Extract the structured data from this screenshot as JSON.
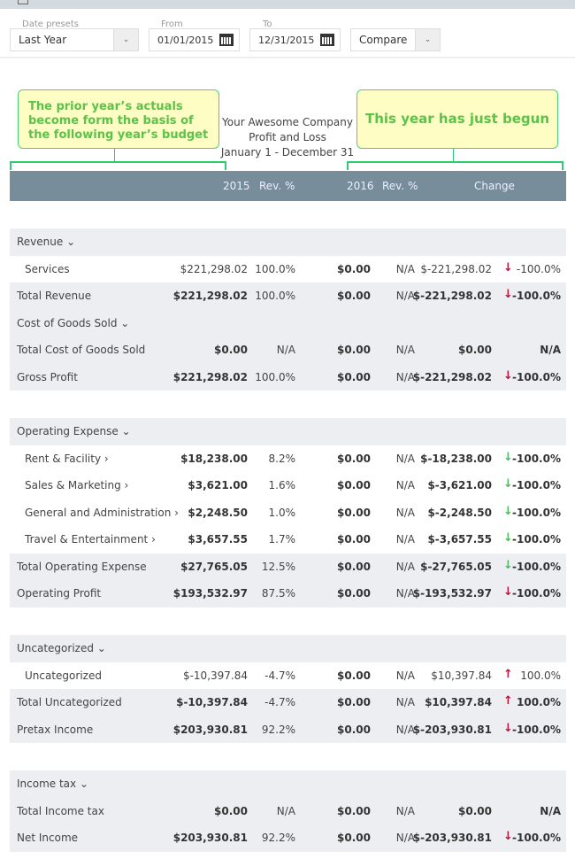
{
  "filters": {
    "date_presets_label": "Date presets",
    "date_presets_value": "Last Year",
    "from_label": "From",
    "from_value": "01/01/2015",
    "to_label": "To",
    "to_value": "12/31/2015",
    "compare_value": "Compare"
  },
  "callouts": {
    "left": "The prior year’s actuals become form the basis of the following year’s budget",
    "right": "This year has just begun"
  },
  "report": {
    "company": "Your Awesome Company",
    "name": "Profit and Loss",
    "period": "January 1 - December 31"
  },
  "columns": {
    "y1": "2015",
    "r1": "Rev. %",
    "y2": "2016",
    "r2": "Rev. %",
    "change": "Change"
  },
  "colors": {
    "header": "#778d99",
    "row_gray": "#eceef1",
    "arrow_red": "#c0143c",
    "arrow_green": "#4cbb5c",
    "callout_text": "#5cc24a"
  },
  "rows": [
    {
      "label": "Revenue ⌄",
      "type": "section"
    },
    {
      "label": "Services",
      "type": "sub",
      "v1": "$221,298.02",
      "r1": "100.0%",
      "v2": "$0.00",
      "r2": "N/A",
      "ch": "$-221,298.02",
      "arrow": "down-red",
      "pct": "-100.0%"
    },
    {
      "label": "Total Revenue",
      "type": "total",
      "v1": "$221,298.02",
      "r1": "100.0%",
      "v2": "$0.00",
      "r2": "N/A",
      "ch": "$-221,298.02",
      "arrow": "down-red",
      "pct": "-100.0%"
    },
    {
      "label": "Cost of Goods Sold ⌄",
      "type": "section"
    },
    {
      "label": "Total Cost of Goods Sold",
      "type": "total",
      "v1": "$0.00",
      "r1": "N/A",
      "v2": "$0.00",
      "r2": "N/A",
      "ch": "$0.00",
      "arrow": "",
      "pct": "N/A"
    },
    {
      "label": "Gross Profit",
      "type": "total",
      "v1": "$221,298.02",
      "r1": "100.0%",
      "v2": "$0.00",
      "r2": "N/A",
      "ch": "$-221,298.02",
      "arrow": "down-red",
      "pct": "-100.0%"
    },
    {
      "label": "Operating Expense ⌄",
      "type": "section"
    },
    {
      "label": "Rent & Facility ›",
      "type": "subb",
      "v1": "$18,238.00",
      "r1": "8.2%",
      "v2": "$0.00",
      "r2": "N/A",
      "ch": "$-18,238.00",
      "arrow": "down-green",
      "pct": "-100.0%"
    },
    {
      "label": "Sales & Marketing ›",
      "type": "subb",
      "v1": "$3,621.00",
      "r1": "1.6%",
      "v2": "$0.00",
      "r2": "N/A",
      "ch": "$-3,621.00",
      "arrow": "down-green",
      "pct": "-100.0%"
    },
    {
      "label": "General and Administration ›",
      "type": "subb",
      "v1": "$2,248.50",
      "r1": "1.0%",
      "v2": "$0.00",
      "r2": "N/A",
      "ch": "$-2,248.50",
      "arrow": "down-green",
      "pct": "-100.0%"
    },
    {
      "label": "Travel & Entertainment ›",
      "type": "subb",
      "v1": "$3,657.55",
      "r1": "1.7%",
      "v2": "$0.00",
      "r2": "N/A",
      "ch": "$-3,657.55",
      "arrow": "down-green",
      "pct": "-100.0%"
    },
    {
      "label": "Total Operating Expense",
      "type": "total",
      "v1": "$27,765.05",
      "r1": "12.5%",
      "v2": "$0.00",
      "r2": "N/A",
      "ch": "$-27,765.05",
      "arrow": "down-green",
      "pct": "-100.0%"
    },
    {
      "label": "Operating Profit",
      "type": "total",
      "v1": "$193,532.97",
      "r1": "87.5%",
      "v2": "$0.00",
      "r2": "N/A",
      "ch": "$-193,532.97",
      "arrow": "down-red",
      "pct": "-100.0%"
    },
    {
      "label": "Uncategorized ⌄",
      "type": "section"
    },
    {
      "label": "Uncategorized",
      "type": "sub",
      "v1": "$-10,397.84",
      "r1": "-4.7%",
      "v2": "$0.00",
      "r2": "N/A",
      "ch": "$10,397.84",
      "arrow": "up-red",
      "pct": "100.0%"
    },
    {
      "label": "Total Uncategorized",
      "type": "total",
      "v1": "$-10,397.84",
      "r1": "-4.7%",
      "v2": "$0.00",
      "r2": "N/A",
      "ch": "$10,397.84",
      "arrow": "up-red",
      "pct": "100.0%"
    },
    {
      "label": "Pretax Income",
      "type": "total",
      "v1": "$203,930.81",
      "r1": "92.2%",
      "v2": "$0.00",
      "r2": "N/A",
      "ch": "$-203,930.81",
      "arrow": "down-red",
      "pct": "-100.0%"
    },
    {
      "label": "Income tax ⌄",
      "type": "section"
    },
    {
      "label": "Total Income tax",
      "type": "total",
      "v1": "$0.00",
      "r1": "N/A",
      "v2": "$0.00",
      "r2": "N/A",
      "ch": "$0.00",
      "arrow": "",
      "pct": "N/A"
    },
    {
      "label": "Net Income",
      "type": "total",
      "v1": "$203,930.81",
      "r1": "92.2%",
      "v2": "$0.00",
      "r2": "N/A",
      "ch": "$-203,930.81",
      "arrow": "down-red",
      "pct": "-100.0%"
    }
  ]
}
